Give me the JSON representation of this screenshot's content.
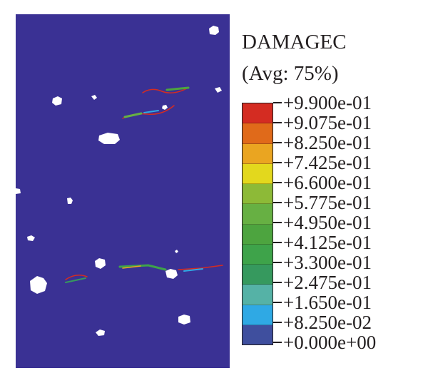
{
  "legend": {
    "title": "DAMAGEC",
    "subtitle": "(Avg: 75%)",
    "labels": [
      "+9.900e-01",
      "+9.075e-01",
      "+8.250e-01",
      "+7.425e-01",
      "+6.600e-01",
      "+5.775e-01",
      "+4.950e-01",
      "+4.125e-01",
      "+3.300e-01",
      "+2.475e-01",
      "+1.650e-01",
      "+8.250e-02",
      "+0.000e+00"
    ],
    "colors": [
      "#d42c22",
      "#e06a1a",
      "#eaa521",
      "#e3d81d",
      "#8dba37",
      "#67b043",
      "#4da43f",
      "#3ea34a",
      "#36995e",
      "#55b2a6",
      "#2fa9e4",
      "#3f4f9e",
      "#3a3194"
    ]
  },
  "colors": {
    "background": "#3a3194",
    "void": "#ffffff",
    "frame": "#231f20"
  }
}
